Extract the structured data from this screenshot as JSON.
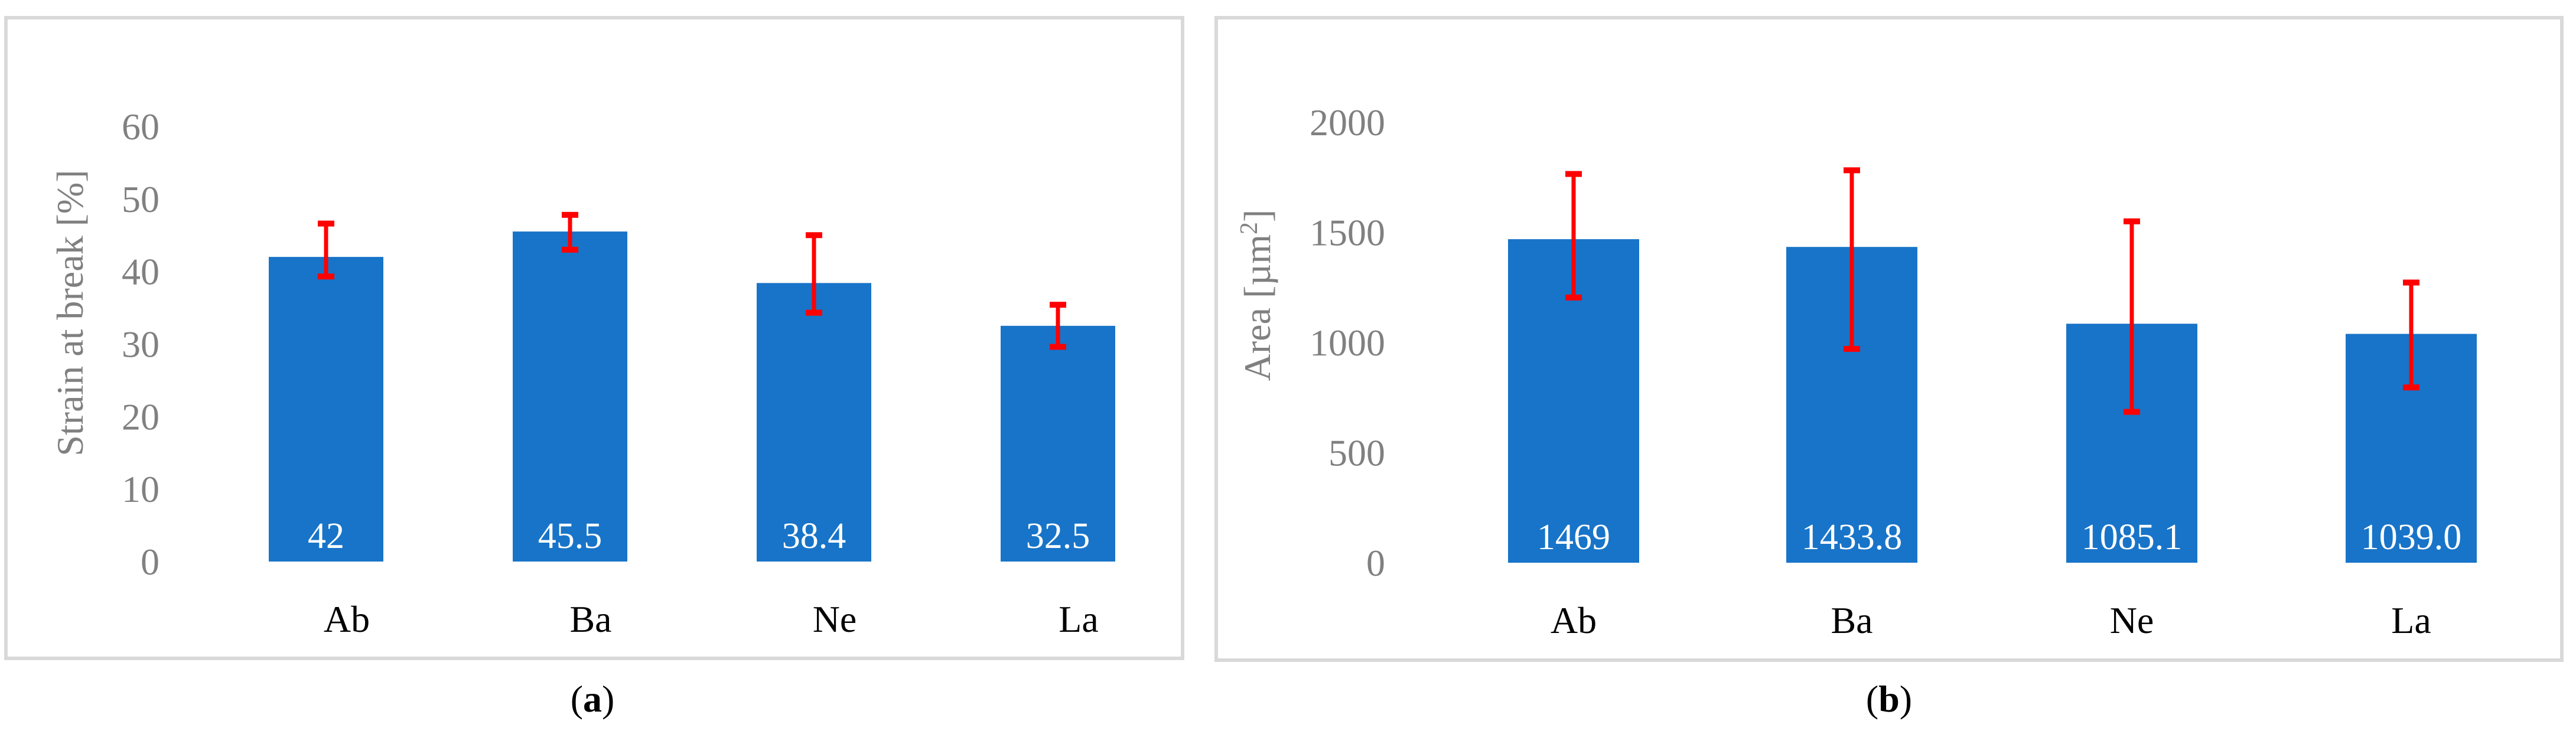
{
  "colors": {
    "bar": "#1874C8",
    "error": "#FF0000",
    "axis_text": "#808080",
    "frame": "#D9D9D9"
  },
  "chart_data": [
    {
      "type": "bar",
      "caption_label": "a",
      "title": "",
      "xlabel": "",
      "ylabel": "Strain at break [%]",
      "ylim": [
        0,
        60
      ],
      "yticks": [
        "0",
        "10",
        "20",
        "30",
        "40",
        "50",
        "60"
      ],
      "grid": false,
      "categories": [
        "Ab",
        "Ba",
        "Ne",
        "La"
      ],
      "values": [
        42,
        45.5,
        38.4,
        32.5
      ],
      "data_labels": [
        "42",
        "45.5",
        "38.4",
        "32.5"
      ],
      "error_upper": [
        46.6,
        47.8,
        45.0,
        35.4
      ],
      "error_lower": [
        39.3,
        43.0,
        34.3,
        29.6
      ]
    },
    {
      "type": "bar",
      "caption_label": "b",
      "title": "",
      "xlabel": "",
      "ylabel": "Area [µm",
      "ylabel_sup": "2",
      "ylabel_end": "]",
      "ylim": [
        0,
        2000
      ],
      "yticks": [
        "0",
        "500",
        "1000",
        "1500",
        "2000"
      ],
      "grid": false,
      "categories": [
        "Ab",
        "Ba",
        "Ne",
        "La"
      ],
      "values": [
        1469,
        1433.8,
        1085.1,
        1039.0
      ],
      "data_labels": [
        "1469",
        "1433.8",
        "1085.1",
        "1039.0"
      ],
      "error_upper": [
        1765,
        1782,
        1550,
        1272
      ],
      "error_lower": [
        1204,
        971,
        685,
        796
      ]
    }
  ]
}
